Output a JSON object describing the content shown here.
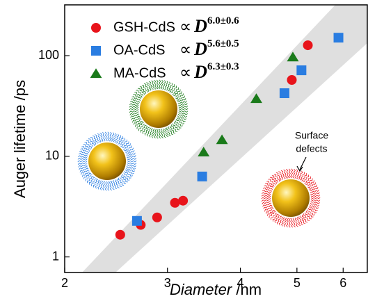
{
  "chart_data": {
    "type": "scatter",
    "xlabel": [
      "Diameter",
      "/nm"
    ],
    "ylabel": "Auger lifetime /ps",
    "xscale": "log",
    "yscale": "log",
    "xlim": [
      2,
      6.6
    ],
    "ylim": [
      0.7,
      320
    ],
    "xticks": [
      2,
      3,
      4,
      5,
      6
    ],
    "yticks": [
      1,
      10,
      100
    ],
    "proportional_symbol": "∝",
    "variable": "D",
    "series": [
      {
        "name": "GSH-CdS",
        "color": "#e8141b",
        "marker": "circle",
        "exponent": "6.0±0.6",
        "x": [
          2.49,
          2.7,
          2.88,
          3.09,
          3.19,
          4.9,
          5.22
        ],
        "values": [
          1.66,
          2.08,
          2.47,
          3.45,
          3.62,
          57.4,
          127
        ]
      },
      {
        "name": "OA-CdS",
        "color": "#2a7de1",
        "marker": "square",
        "exponent": "5.6±0.5",
        "x": [
          2.66,
          3.44,
          4.76,
          5.09,
          5.89
        ],
        "values": [
          2.28,
          6.3,
          42.4,
          71.6,
          151
        ]
      },
      {
        "name": "MA-CdS",
        "color": "#1a7a1a",
        "marker": "triangle",
        "exponent": "6.3±0.3",
        "x": [
          3.46,
          3.72,
          4.26,
          4.92
        ],
        "values": [
          11,
          14.6,
          37.4,
          96.9
        ]
      }
    ],
    "annotation": [
      "Surface",
      "defects"
    ]
  }
}
